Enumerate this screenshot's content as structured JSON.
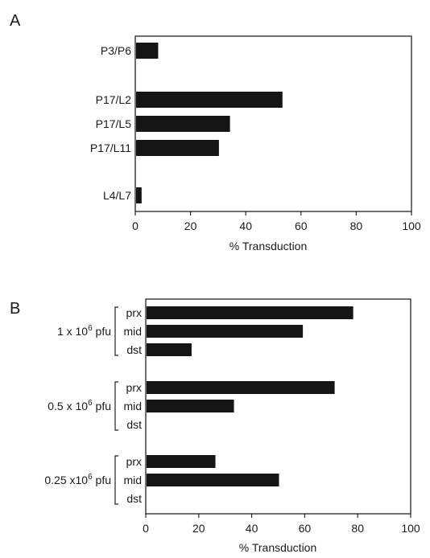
{
  "chart_data": [
    {
      "panel": "A",
      "type": "bar",
      "orientation": "horizontal",
      "categories": [
        "P3/P6",
        "P17/L2",
        "P17/L5",
        "P17/L11",
        "L4/L7"
      ],
      "values": [
        8,
        53,
        34,
        30,
        2
      ],
      "xlabel": "% Transduction",
      "xlim": [
        0,
        100
      ],
      "xticks": [
        "0",
        "20",
        "40",
        "60",
        "80",
        "100"
      ],
      "grid": false,
      "legend": "none"
    },
    {
      "panel": "B",
      "type": "bar",
      "orientation": "horizontal",
      "groups": [
        {
          "label": "1 x 10",
          "sup": "6",
          "unit": "pfu",
          "items": [
            {
              "label": "prx",
              "value": 78
            },
            {
              "label": "mid",
              "value": 59
            },
            {
              "label": "dst",
              "value": 17
            }
          ]
        },
        {
          "label": "0.5 x 10",
          "sup": "6",
          "unit": "pfu",
          "items": [
            {
              "label": "prx",
              "value": 71
            },
            {
              "label": "mid",
              "value": 33
            },
            {
              "label": "dst",
              "value": 0
            }
          ]
        },
        {
          "label": "0.25 x10",
          "sup": "6",
          "unit": "pfu",
          "items": [
            {
              "label": "prx",
              "value": 26
            },
            {
              "label": "mid",
              "value": 50
            },
            {
              "label": "dst",
              "value": 0
            }
          ]
        }
      ],
      "xlabel": "% Transduction",
      "xlim": [
        0,
        100
      ],
      "xticks": [
        "0",
        "20",
        "40",
        "60",
        "80",
        "100"
      ],
      "grid": false,
      "legend": "none"
    }
  ]
}
